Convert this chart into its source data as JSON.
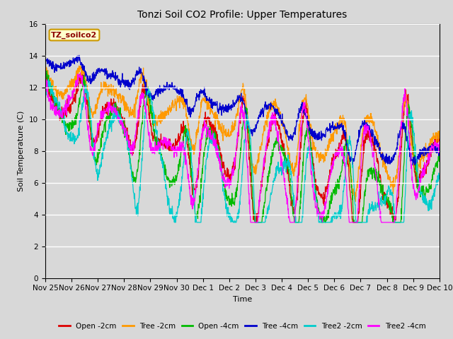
{
  "title": "Tonzi Soil CO2 Profile: Upper Temperatures",
  "xlabel": "Time",
  "ylabel": "Soil Temperature (C)",
  "ylim": [
    0,
    16
  ],
  "yticks": [
    0,
    2,
    4,
    6,
    8,
    10,
    12,
    14,
    16
  ],
  "bg_color": "#d8d8d8",
  "legend_label": "TZ_soilco2",
  "legend_bg": "#ffffcc",
  "legend_border": "#cc9900",
  "series": [
    {
      "label": "Open -2cm",
      "color": "#dd0000"
    },
    {
      "label": "Tree -2cm",
      "color": "#ff9900"
    },
    {
      "label": "Open -4cm",
      "color": "#00bb00"
    },
    {
      "label": "Tree -4cm",
      "color": "#0000cc"
    },
    {
      "label": "Tree2 -2cm",
      "color": "#00cccc"
    },
    {
      "label": "Tree2 -4cm",
      "color": "#ff00ff"
    }
  ],
  "xtick_labels": [
    "Nov 25",
    "Nov 26",
    "Nov 27",
    "Nov 28",
    "Nov 29",
    "Nov 30",
    "Dec 1",
    "Dec 2",
    "Dec 3",
    "Dec 4",
    "Dec 5",
    "Dec 6",
    "Dec 7",
    "Dec 8",
    "Dec 9",
    "Dec 10"
  ]
}
